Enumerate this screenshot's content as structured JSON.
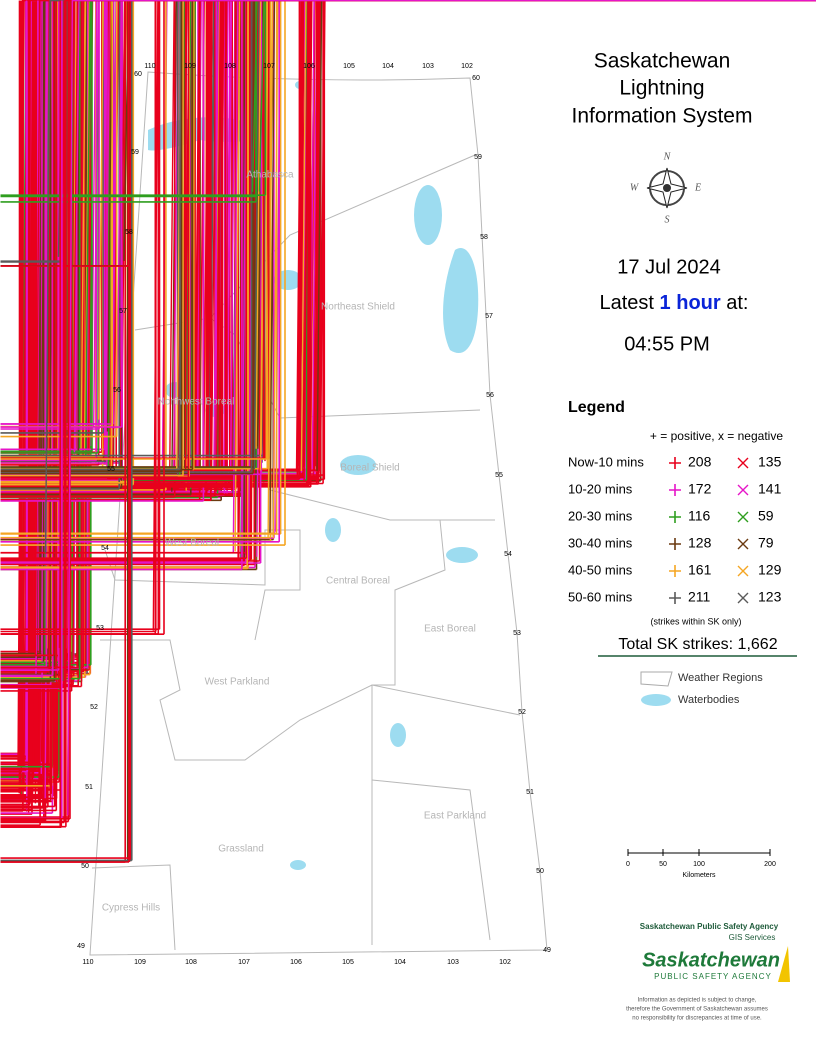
{
  "title_lines": [
    "Saskatchewan",
    "Lightning",
    "Information System"
  ],
  "compass": [
    "N",
    "E",
    "S",
    "W"
  ],
  "date": "17 Jul 2024",
  "latest": {
    "before": "Latest",
    "highlight": "1 hour",
    "after": "at:"
  },
  "time": "04:55 PM",
  "legend": {
    "title": "Legend",
    "note": "+ = positive, x = negative",
    "rows": [
      {
        "label": "Now-10 mins",
        "color": "#e8001c",
        "positive": "208",
        "negative": "135"
      },
      {
        "label": "10-20 mins",
        "color": "#e614c8",
        "positive": "172",
        "negative": "141"
      },
      {
        "label": "20-30 mins",
        "color": "#2f9e1f",
        "positive": "116",
        "negative": "59"
      },
      {
        "label": "30-40 mins",
        "color": "#6b3a10",
        "positive": "128",
        "negative": "79"
      },
      {
        "label": "40-50 mins",
        "color": "#f5a623",
        "positive": "161",
        "negative": "129"
      },
      {
        "label": "50-60 mins",
        "color": "#5a5a5a",
        "positive": "211",
        "negative": "123"
      }
    ],
    "footnote": "(strikes within SK only)",
    "total": "Total SK strikes: 1,662",
    "regions": "Weather Regions",
    "waterbodies": "Waterbodies"
  },
  "regions": [
    "Athabasca",
    "Northeast Shield",
    "Northwest Boreal",
    "Boreal Shield",
    "West Boreal",
    "Central Boreal",
    "East Boreal",
    "West Parkland",
    "East Parkland",
    "Grassland",
    "Cypress Hills"
  ],
  "longitudes": [
    "110",
    "109",
    "108",
    "107",
    "106",
    "105",
    "104",
    "103",
    "102"
  ],
  "latitudes": [
    "60",
    "59",
    "58",
    "57",
    "56",
    "55",
    "54",
    "53",
    "52",
    "51",
    "50",
    "49"
  ],
  "scale": {
    "ticks": [
      "0",
      "50",
      "100",
      "200"
    ],
    "unit": "Kilometers"
  },
  "agency": {
    "name": "Saskatchewan Public Safety Agency",
    "unit": "GIS Services",
    "logo": "Saskatchewan",
    "logo_sub": "PUBLIC SAFETY AGENCY",
    "disclaimer": [
      "Information as depicted is subject to change,",
      "therefore the Government of Saskatchewan assumes",
      "no responsibility for discrepancies at time of use."
    ]
  }
}
